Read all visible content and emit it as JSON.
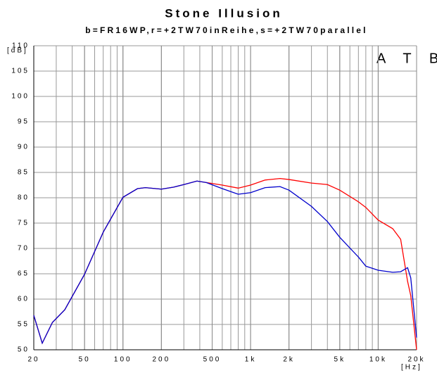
{
  "chart_data": {
    "type": "line",
    "title": "Stone Illusion",
    "subtitle": "b=FR16WP,r=+2TW70inReihe,s=+2TW70parallel",
    "y_label": "[dB]",
    "x_label": "[Hz]",
    "annotation": "A T B",
    "x_scale": "log",
    "grid": true,
    "x": [
      20,
      23.3,
      28,
      35,
      50,
      70,
      100,
      130,
      150,
      200,
      250,
      300,
      380,
      450,
      600,
      800,
      1000,
      1300,
      1700,
      2000,
      3000,
      4000,
      5000,
      7000,
      8000,
      10000,
      13000,
      15000,
      17000,
      18000,
      20000
    ],
    "series": [
      {
        "color": "#ff0000",
        "values": [
          56.8,
          51.3,
          55.4,
          57.9,
          64.9,
          73.2,
          80.1,
          81.8,
          82,
          81.7,
          82.1,
          82.6,
          83.3,
          83,
          82.5,
          81.9,
          82.5,
          83.5,
          83.8,
          83.6,
          82.9,
          82.6,
          81.5,
          79.2,
          78.1,
          75.6,
          73.9,
          71.8,
          63.5,
          60.7,
          50
        ]
      },
      {
        "color": "#0000cc",
        "values": [
          56.8,
          51.3,
          55.4,
          57.9,
          64.9,
          73.2,
          80.1,
          81.8,
          82,
          81.7,
          82.1,
          82.6,
          83.3,
          83,
          81.8,
          80.7,
          81,
          82,
          82.2,
          81.5,
          78.3,
          75.3,
          72.2,
          68.3,
          66.5,
          65.7,
          65.3,
          65.4,
          66.2,
          64.2,
          52.4
        ]
      }
    ],
    "xlim": [
      20,
      20000
    ],
    "xticks": [
      20,
      50,
      100,
      200,
      500,
      {
        "value": 1000,
        "label": "1k"
      },
      {
        "value": 2000,
        "label": "2k"
      },
      {
        "value": 5000,
        "label": "5k"
      },
      {
        "value": 10000,
        "label": "10k"
      },
      {
        "value": 20000,
        "label": "20k"
      }
    ],
    "ylim": [
      50,
      110
    ],
    "yticks": [
      50,
      55,
      60,
      65,
      70,
      75,
      80,
      85,
      90,
      95,
      100,
      105,
      110
    ]
  }
}
